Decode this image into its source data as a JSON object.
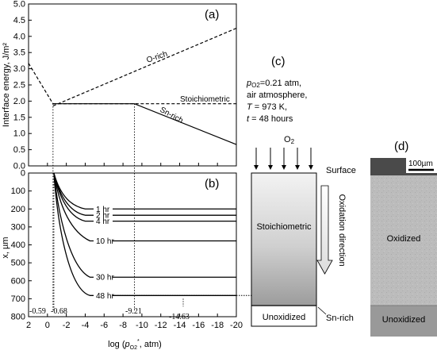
{
  "chart_data": [
    {
      "type": "line",
      "panel": "(a)",
      "ylabel": "Interface energy, J/m²",
      "xlim": [
        2,
        -20
      ],
      "ylim": [
        0.0,
        5.0
      ],
      "yticks": [
        "0.0",
        "0.5",
        "1.0",
        "1.5",
        "2.0",
        "2.5",
        "3.0",
        "3.5",
        "4.0",
        "4.5",
        "5.0"
      ],
      "series": [
        {
          "name": "O-rich",
          "style": "dashed",
          "x": [
            -0.59,
            -20
          ],
          "y": [
            1.85,
            4.25
          ]
        },
        {
          "name": "Sn-rich",
          "style": "solid",
          "x": [
            -0.59,
            -9.21,
            -20
          ],
          "y": [
            1.92,
            1.92,
            0.66
          ]
        },
        {
          "name": "",
          "style": "dashed",
          "x": [
            2,
            -0.59
          ],
          "y": [
            3.17,
            1.92
          ]
        },
        {
          "name": "Stoichiometric",
          "style": "dashed",
          "x": [
            -0.59,
            -20
          ],
          "y": [
            1.92,
            1.92
          ]
        }
      ]
    },
    {
      "type": "line",
      "panel": "(b)",
      "xlabel": "log (p*O2, atm)",
      "ylabel": "x, µm",
      "xlim": [
        2,
        -20
      ],
      "ylim": [
        800,
        0
      ],
      "xticks": [
        "2",
        "0",
        "-2",
        "-4",
        "-6",
        "-8",
        "-10",
        "-12",
        "-14",
        "-16",
        "-18",
        "-20"
      ],
      "yticks": [
        "0",
        "100",
        "200",
        "300",
        "400",
        "500",
        "600",
        "700",
        "800"
      ],
      "series": [
        {
          "name": "1 hr",
          "x": [
            -0.68,
            -1.4,
            -2.6,
            -4.0,
            -20
          ],
          "y": [
            0,
            135,
            185,
            200,
            200
          ]
        },
        {
          "name": "2 hr",
          "x": [
            -0.68,
            -1.4,
            -2.6,
            -4.0,
            -20
          ],
          "y": [
            0,
            150,
            220,
            235,
            235
          ]
        },
        {
          "name": "4 hr",
          "x": [
            -0.68,
            -1.4,
            -2.6,
            -4.0,
            -20
          ],
          "y": [
            0,
            170,
            250,
            268,
            268
          ]
        },
        {
          "name": "10 hr",
          "x": [
            -0.68,
            -1.3,
            -2.6,
            -4.5,
            -20
          ],
          "y": [
            0,
            200,
            330,
            378,
            380
          ]
        },
        {
          "name": "30 hr",
          "x": [
            -0.68,
            -1.2,
            -2.5,
            -4.5,
            -20
          ],
          "y": [
            0,
            260,
            530,
            580,
            590
          ]
        },
        {
          "name": "48 hr",
          "x": [
            -0.68,
            -1.1,
            -2.3,
            -4.5,
            -20
          ],
          "y": [
            0,
            300,
            650,
            682,
            682
          ]
        }
      ],
      "annotations": [
        "-0.59",
        "-0.68",
        "-9.21",
        "-14.63"
      ]
    }
  ],
  "labels": {
    "panel_a": "(a)",
    "panel_b": "(b)",
    "panel_c": "(c)",
    "panel_d": "(d)",
    "o_rich": "O-rich",
    "sn_rich_a": "Sn-rich",
    "stoichiometric_a": "Stoichiometric",
    "ylabel_a": "Interface energy, J/m²",
    "ylabel_b": "x, µm",
    "xlabel": "log (p*O2, atm)",
    "ann_059": "-0.59",
    "ann_068": "-0.68",
    "ann_921": "-9.21",
    "ann_1463": "-14.63"
  },
  "conditions": {
    "line1": "pO2=0.21 atm,",
    "line2": "air atmosphere,",
    "line3": "T = 973 K,",
    "line4": "t = 48 hours"
  },
  "schematic": {
    "o2": "O2",
    "surface": "Surface",
    "stoichiometric": "Stoichiometric",
    "oxidation_direction": "Oxidation direction",
    "unoxidized": "Unoxidized",
    "sn_rich": "Sn-rich"
  },
  "micrograph": {
    "scale": "100µm",
    "oxidized": "Oxidized",
    "unoxidized": "Unoxidized"
  },
  "colors": {
    "ink": "#000000",
    "micrograph_oxidized": "#b9b9b9",
    "micrograph_unoxidized": "#9a9a9a",
    "gradient_top": "#f4f4f4",
    "gradient_bottom": "#9c9c9c"
  }
}
